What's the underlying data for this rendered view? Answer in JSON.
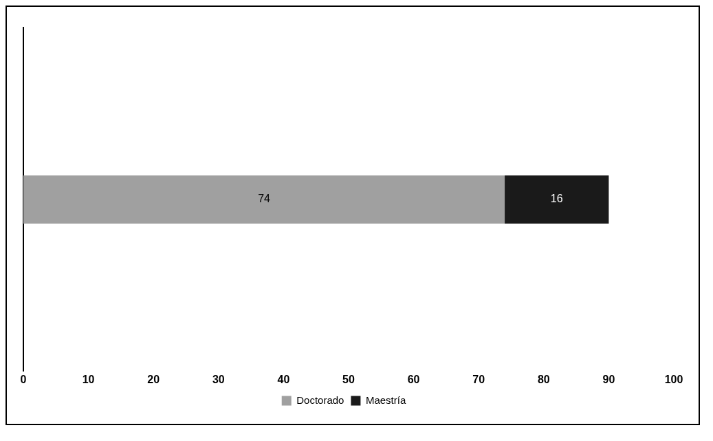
{
  "chart_data": {
    "type": "bar",
    "orientation": "horizontal",
    "stacked": true,
    "categories": [
      null
    ],
    "series": [
      {
        "name": "Doctorado",
        "color": "#a0a0a0",
        "values": [
          74
        ]
      },
      {
        "name": "Maestría",
        "color": "#1a1a1a",
        "values": [
          16
        ]
      }
    ],
    "xlim": [
      0,
      100
    ],
    "xticks": [
      0,
      10,
      20,
      30,
      40,
      50,
      60,
      70,
      80,
      90,
      100
    ],
    "grid": false,
    "legend": "bottom",
    "data_labels": true
  }
}
